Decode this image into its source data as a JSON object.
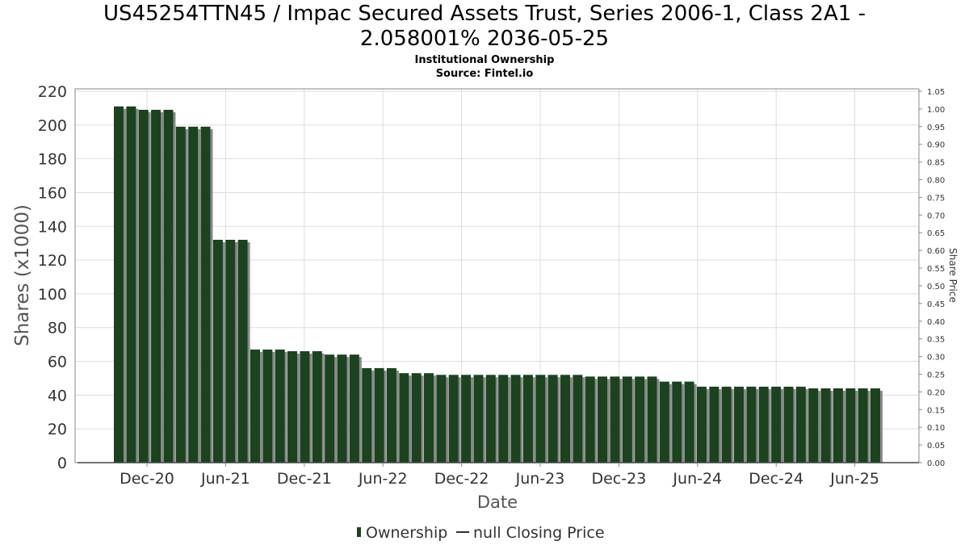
{
  "title_line1": "US45254TTN45 / Impac Secured Assets Trust, Series 2006-1, Class 2A1 -",
  "title_line2": "2.058001% 2036-05-25",
  "subtitle1": "Institutional Ownership",
  "subtitle2": "Source: Fintel.io",
  "colors": {
    "bar": "#1c4220",
    "bar_shadow": "#8a8a8a",
    "grid": "#dddddd",
    "axis": "#888888"
  },
  "chart_data": {
    "type": "bar",
    "xlabel": "Date",
    "ylabel": "Shares (x1000)",
    "y2label": "Share Price",
    "ylim": [
      0,
      220
    ],
    "y2lim": [
      0,
      1.05
    ],
    "y_ticks": [
      0,
      20,
      40,
      60,
      80,
      100,
      120,
      140,
      160,
      180,
      200,
      220
    ],
    "y2_ticks": [
      "0.00",
      "0.05",
      "0.10",
      "0.15",
      "0.20",
      "0.25",
      "0.30",
      "0.35",
      "0.40",
      "0.45",
      "0.50",
      "0.55",
      "0.60",
      "0.65",
      "0.70",
      "0.75",
      "0.80",
      "0.85",
      "0.90",
      "0.95",
      "1.00",
      "1.05"
    ],
    "x_ticks": [
      "Dec-20",
      "Jun-21",
      "Dec-21",
      "Jun-22",
      "Dec-22",
      "Jun-23",
      "Dec-23",
      "Jun-24",
      "Dec-24",
      "Jun-25"
    ],
    "grid": true,
    "legend_position": "bottom-center",
    "series": [
      {
        "name": "Ownership",
        "values": [
          211,
          211,
          209,
          209,
          209,
          199,
          199,
          199,
          132,
          132,
          132,
          67,
          67,
          67,
          66,
          66,
          66,
          64,
          64,
          64,
          56,
          56,
          56,
          53,
          53,
          53,
          52,
          52,
          52,
          52,
          52,
          52,
          52,
          52,
          52,
          52,
          52,
          52,
          51,
          51,
          51,
          51,
          51,
          51,
          48,
          48,
          48,
          45,
          45,
          45,
          45,
          45,
          45,
          45,
          45,
          45,
          44,
          44,
          44,
          44,
          44,
          44
        ]
      },
      {
        "name": "null Closing Price",
        "values": []
      }
    ]
  }
}
